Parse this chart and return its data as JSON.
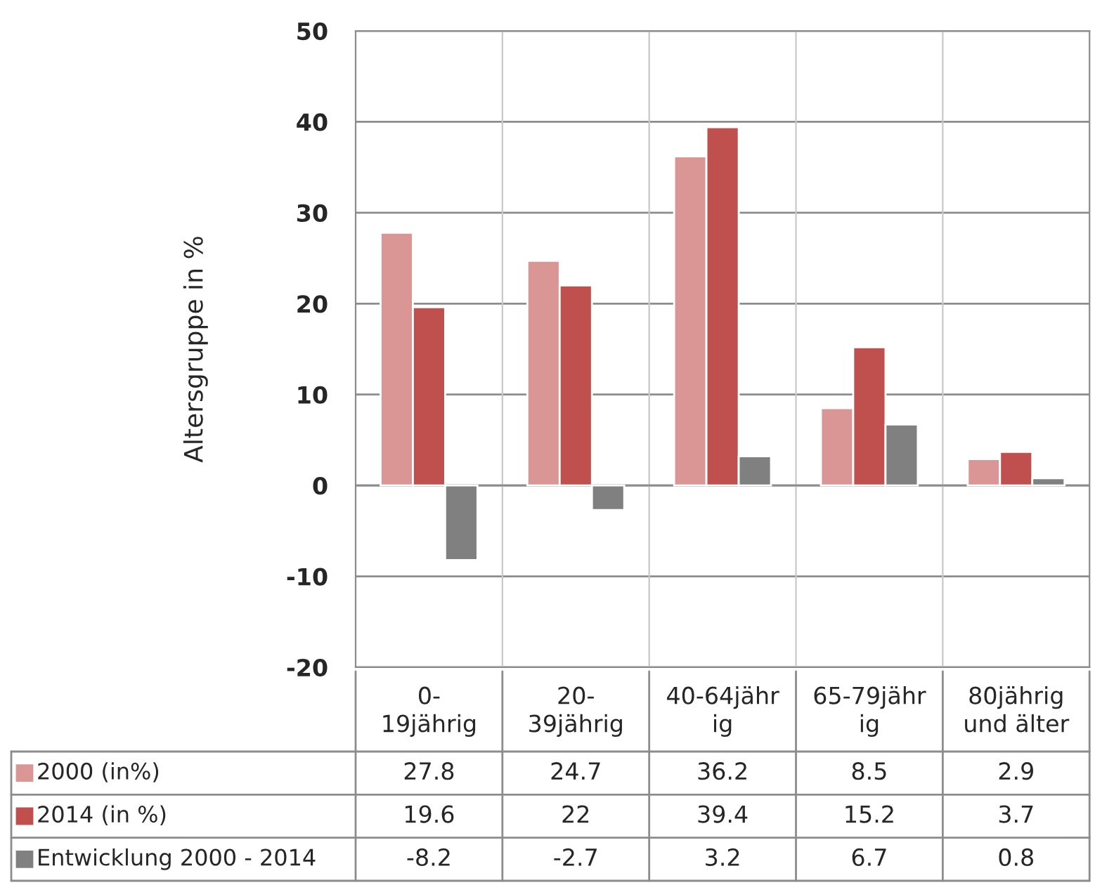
{
  "chart_data": {
    "type": "bar",
    "ylabel": "Altersgruppe in %",
    "categories": [
      "0-\n19jährig",
      "20-\n39jährig",
      "40-64jähr\nig",
      "65-79jähr\nig",
      "80jährig\nund älter"
    ],
    "series": [
      {
        "name": "2000 (in%)",
        "color": "#d99694",
        "values": [
          27.8,
          24.7,
          36.2,
          8.5,
          2.9
        ]
      },
      {
        "name": "2014 (in %)",
        "color": "#c0504d",
        "values": [
          19.6,
          22,
          39.4,
          15.2,
          3.7
        ]
      },
      {
        "name": "Entwicklung 2000 - 2014",
        "color": "#808080",
        "values": [
          -8.2,
          -2.7,
          3.2,
          6.7,
          0.8
        ]
      }
    ],
    "ylim": [
      -20,
      50
    ],
    "yticks": [
      -20,
      -10,
      0,
      10,
      20,
      30,
      40,
      50
    ],
    "grid": "y",
    "data_labels": true,
    "legend": "bottom left"
  }
}
